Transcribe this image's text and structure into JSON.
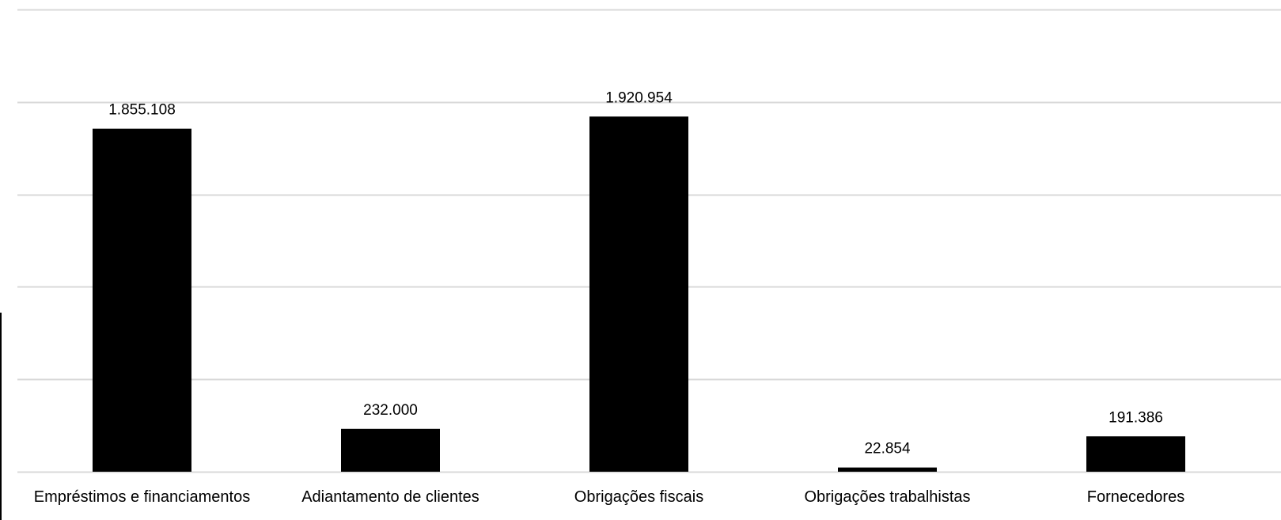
{
  "chart_data": {
    "type": "bar",
    "categories": [
      "Empréstimos e financiamentos",
      "Adiantamento de clientes",
      "Obrigações fiscais",
      "Obrigações trabalhistas",
      "Fornecedores"
    ],
    "values": [
      1855108,
      232000,
      1920954,
      22854,
      191386
    ],
    "data_labels": [
      "1.855.108",
      "232.000",
      "1.920.954",
      "22.854",
      "191.386"
    ],
    "ylim": [
      0,
      2500000
    ],
    "y_gridlines": [
      0,
      500000,
      1000000,
      1500000,
      2000000,
      2500000
    ],
    "grid": true,
    "legend": "none",
    "colors": {
      "bar": "#000000",
      "grid": "#d9d9d9",
      "axis": "#d9d9d9",
      "text": "#000000"
    }
  }
}
